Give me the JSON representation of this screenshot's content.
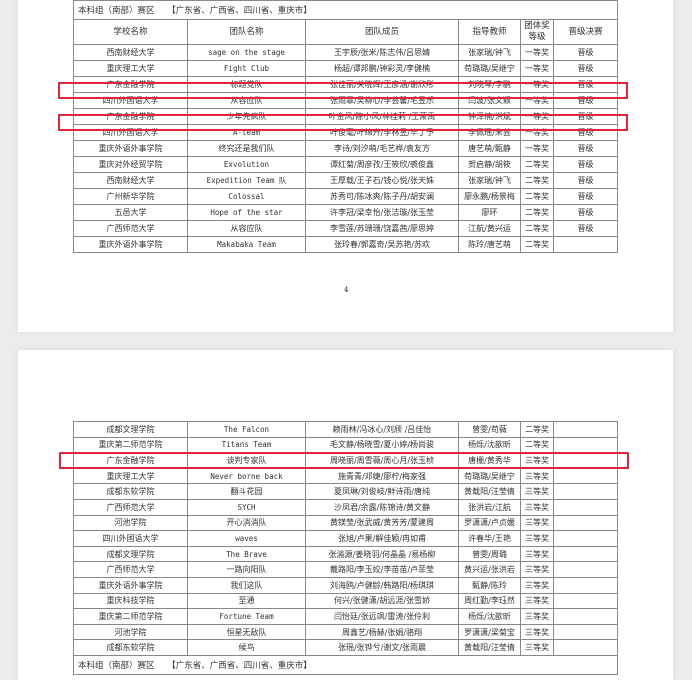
{
  "highlight_color": "#e0263a",
  "page1": {
    "region_title": "本科组（南部）赛区　　【广东省、广西省、四川省、重庆市】",
    "headers": [
      "学校名称",
      "团队名称",
      "团队成员",
      "指导教师",
      "团体奖等级",
      "晋级决赛"
    ],
    "rows": [
      [
        "西南财经大学",
        "sage on the stage",
        "王宇辰/张米/陈志伟/吕思婧",
        "张家瑞/钟飞",
        "一等奖",
        "晋级"
      ],
      [
        "重庆理工大学",
        "Fight Club",
        "杨超/谭邦鹏/钟彩灵/李健楠",
        "苟璐璐/吴继宁",
        "一等奖",
        "晋级"
      ],
      [
        "广东金融学院",
        "标题党队",
        "张佳丽/关晓辉/王彦涵/谢欣彤",
        "刘晓琴/李鹏",
        "一等奖",
        "晋级"
      ],
      [
        "四川外国语大学",
        "从容应队",
        "张雨霏/吴柳心/李芸馨/毛昱乐",
        "闫波/张文颖",
        "一等奖",
        "晋级"
      ],
      [
        "广东金融学院",
        "少年先疯队",
        "叶金风/陈小风/林桂莉 /王萧禹",
        "钟泽楠/洪斌",
        "一等奖",
        "晋级"
      ],
      [
        "四川外国语大学",
        "A-team",
        "叶俊毫/叶绵升/李林昱/毕丁予",
        "李佩瑶/朱芸",
        "一等奖",
        "晋级"
      ],
      [
        "重庆外语外事学院",
        "终究还是我们队",
        "李诗/刘汐萌/毛艺桦/袁友方",
        "唐艺萌/甄静",
        "一等奖",
        "晋级"
      ],
      [
        "重庆对外经贸学院",
        "Exvolution",
        "谭红菊/周彦孜/王筱欣/裘俊鑫",
        "贺启静/胡筱",
        "二等奖",
        "晋级"
      ],
      [
        "西南财经大学",
        "Expedition Team 队",
        "王厚载/王子石/钱心悦/张天姝",
        "张家瑞/钟飞",
        "二等奖",
        "晋级"
      ],
      [
        "广州新华学院",
        "Colossal",
        "苏秀可/陈冰爽/陈子丹/胡安澜",
        "廖永鹏/杨景梅",
        "二等奖",
        "晋级"
      ],
      [
        "五邑大学",
        "Hope of the star",
        "许李冠/梁幸怡/张洁璇/张玉莹",
        "廖环",
        "二等奖",
        "晋级"
      ],
      [
        "广西师范大学",
        "从容应队",
        "李雪莲/苏珊珊/饶嘉茜/廖思婷",
        "江航/黄兴运",
        "二等奖",
        "晋级"
      ],
      [
        "重庆外语外事学院",
        "Makabaka Team",
        "张玲春/郭嘉奇/吴苏艳/苏欢",
        "陈玲/唐艺萌",
        "二等奖",
        ""
      ]
    ],
    "page_number": "4"
  },
  "page2": {
    "rows": [
      [
        "成都文理学院",
        "The Falcon",
        "赖雨林/冯冰心/刘颀 /吕佳怡",
        "曾雯/苟薇",
        "二等奖",
        ""
      ],
      [
        "重庆第二师范学院",
        "Titans Team",
        "毛文静/杨晓雪/夏小婷/杨尚骏",
        "杨烁/沈歆昕",
        "二等奖",
        ""
      ],
      [
        "广东金融学院",
        "谈判专家队",
        "周晓丽/周雪薇/周心月/张玉桢",
        "唐栅/黄秀华",
        "三等奖",
        ""
      ],
      [
        "重庆理工大学",
        "Never borne back",
        "施青青/邓婕/廖柠/梅家强",
        "苟璐璐/吴继宁",
        "三等奖",
        ""
      ],
      [
        "成都东软学院",
        "翻斗花园",
        "夏凤琳/刘俊岐/鲜诗雨/唐纯",
        "黄载阳/汪莹倩",
        "三等奖",
        ""
      ],
      [
        "广西师范大学",
        "SYCH",
        "沙凤君/余露/陈锦诗/黄文静",
        "张洪岩/江航",
        "三等奖",
        ""
      ],
      [
        "河池学院",
        "开心消消队",
        "黄镁莹/张武威/黄芳芳/蒙建周",
        "罗潇潇/卢贞媛",
        "三等奖",
        ""
      ],
      [
        "四川外国语大学",
        "waves",
        "张旭/卢果/解佳颖/冉如甫",
        "许春华/王艳",
        "三等奖",
        ""
      ],
      [
        "成都文理学院",
        "The Brave",
        "张渝源/姜晓羽/何晶晶 /易杨柳",
        "曾雯/周璐",
        "三等奖",
        ""
      ],
      [
        "广西师范大学",
        "一路向阳队",
        "戴路阳/李玉姣/李苗苗/卢菲莹",
        "黄兴运/张洪岩",
        "三等奖",
        ""
      ],
      [
        "重庆外语外事学院",
        "我们这队",
        "刘海鸥/卢健龄/韩路阳/杨琪琪",
        "甄静/陈玲",
        "三等奖",
        ""
      ],
      [
        "重庆科技学院",
        "至通",
        "何兴/张健潇/胡远涯/张雪娇",
        "周红勤/李珏然",
        "三等奖",
        ""
      ],
      [
        "重庆第二师范学院",
        "Fortune Team",
        "闫怡廷/张远飒/雷涛/张伶利",
        "杨烁/沈歆昕",
        "三等奖",
        ""
      ],
      [
        "河池学院",
        "恒星无敌队",
        "周鑫艺/杨赫/张娟/骆翔",
        "罗潇潇/梁菊宝",
        "三等奖",
        ""
      ],
      [
        "成都东软学院",
        "候鸟",
        "张瑶/张铧兮/谢文/张雨晨",
        "黄载阳/汪莹倩",
        "三等奖",
        ""
      ]
    ],
    "footer_region_title": "本科组（南部）赛区　　【广东省、广西省、四川省、重庆市】"
  }
}
